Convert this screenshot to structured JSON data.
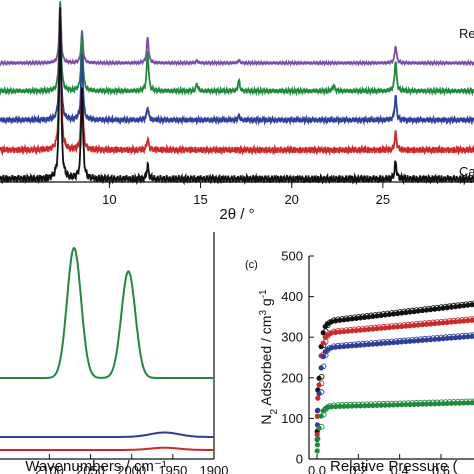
{
  "chart_data": [
    {
      "panel": "a",
      "type": "line",
      "xlabel": "2θ / °",
      "xlim": [
        4,
        30
      ],
      "x_ticks": [
        10,
        15,
        20,
        25
      ],
      "grid": false,
      "y_axis_visible": false,
      "series": [
        {
          "label": "Re",
          "color": "#7b4fa8",
          "peaks": [
            [
              7.3,
              1.0
            ],
            [
              8.5,
              0.55
            ],
            [
              12.1,
              0.45
            ],
            [
              25.7,
              0.3
            ],
            [
              17.1,
              0.05
            ],
            [
              14.8,
              0.04
            ]
          ]
        },
        {
          "label": "",
          "color": "#1f8a3c",
          "peaks": [
            [
              7.3,
              1.0
            ],
            [
              8.5,
              0.65
            ],
            [
              12.1,
              0.45
            ],
            [
              25.7,
              0.35
            ],
            [
              17.1,
              0.12
            ],
            [
              14.8,
              0.08
            ],
            [
              22.3,
              0.06
            ]
          ]
        },
        {
          "label": "",
          "color": "#2c3f9a",
          "peaks": [
            [
              7.3,
              1.0
            ],
            [
              8.5,
              0.6
            ],
            [
              12.1,
              0.12
            ],
            [
              25.7,
              0.22
            ],
            [
              17.1,
              0.04
            ]
          ]
        },
        {
          "label": "",
          "color": "#cc2a2a",
          "peaks": [
            [
              7.3,
              1.0
            ],
            [
              8.5,
              0.45
            ],
            [
              12.1,
              0.08
            ],
            [
              25.7,
              0.12
            ]
          ]
        },
        {
          "label": "Ca",
          "color": "#111111",
          "peaks": [
            [
              7.3,
              1.0
            ],
            [
              8.5,
              0.55
            ],
            [
              12.1,
              0.08
            ],
            [
              25.7,
              0.1
            ]
          ]
        }
      ]
    },
    {
      "panel": "b",
      "type": "line",
      "xlabel": "Wavenumbers / cm⁻¹",
      "xlim": [
        2160,
        1900
      ],
      "x_ticks": [
        2100,
        2050,
        2000,
        1950,
        1900
      ],
      "grid": false,
      "series": [
        {
          "color": "#1f8a3c",
          "baseline": 0.68,
          "peaks": [
            [
              2070,
              1.0,
              12
            ],
            [
              2004,
              0.82,
              12
            ]
          ]
        },
        {
          "color": "#2c3f9a",
          "baseline": 0.12,
          "peaks": [
            [
              1960,
              0.03,
              25
            ]
          ]
        },
        {
          "color": "#cc2a2a",
          "baseline": 0.02,
          "peaks": [
            [
              1960,
              0.015,
              25
            ]
          ]
        }
      ]
    },
    {
      "panel": "c",
      "label": "(c)",
      "type": "scatter",
      "xlabel": "Relative Pressure (",
      "ylabel": "N2 Adsorbed / cm3 g-1",
      "xlim": [
        -0.03,
        0.8
      ],
      "ylim": [
        0,
        500
      ],
      "x_ticks": [
        0.0,
        0.2,
        0.4,
        0.6
      ],
      "y_ticks": [
        0,
        100,
        200,
        300,
        400,
        500
      ],
      "grid": false,
      "series": [
        {
          "color": "#111111",
          "plateau": 335,
          "slope": 60,
          "start": 170
        },
        {
          "color": "#cc2a2a",
          "plateau": 308,
          "slope": 45,
          "start": 150
        },
        {
          "color": "#2c3f9a",
          "plateau": 272,
          "slope": 40,
          "start": 120
        },
        {
          "color": "#1f8a3c",
          "plateau": 128,
          "slope": 14,
          "start": 50
        }
      ]
    }
  ]
}
